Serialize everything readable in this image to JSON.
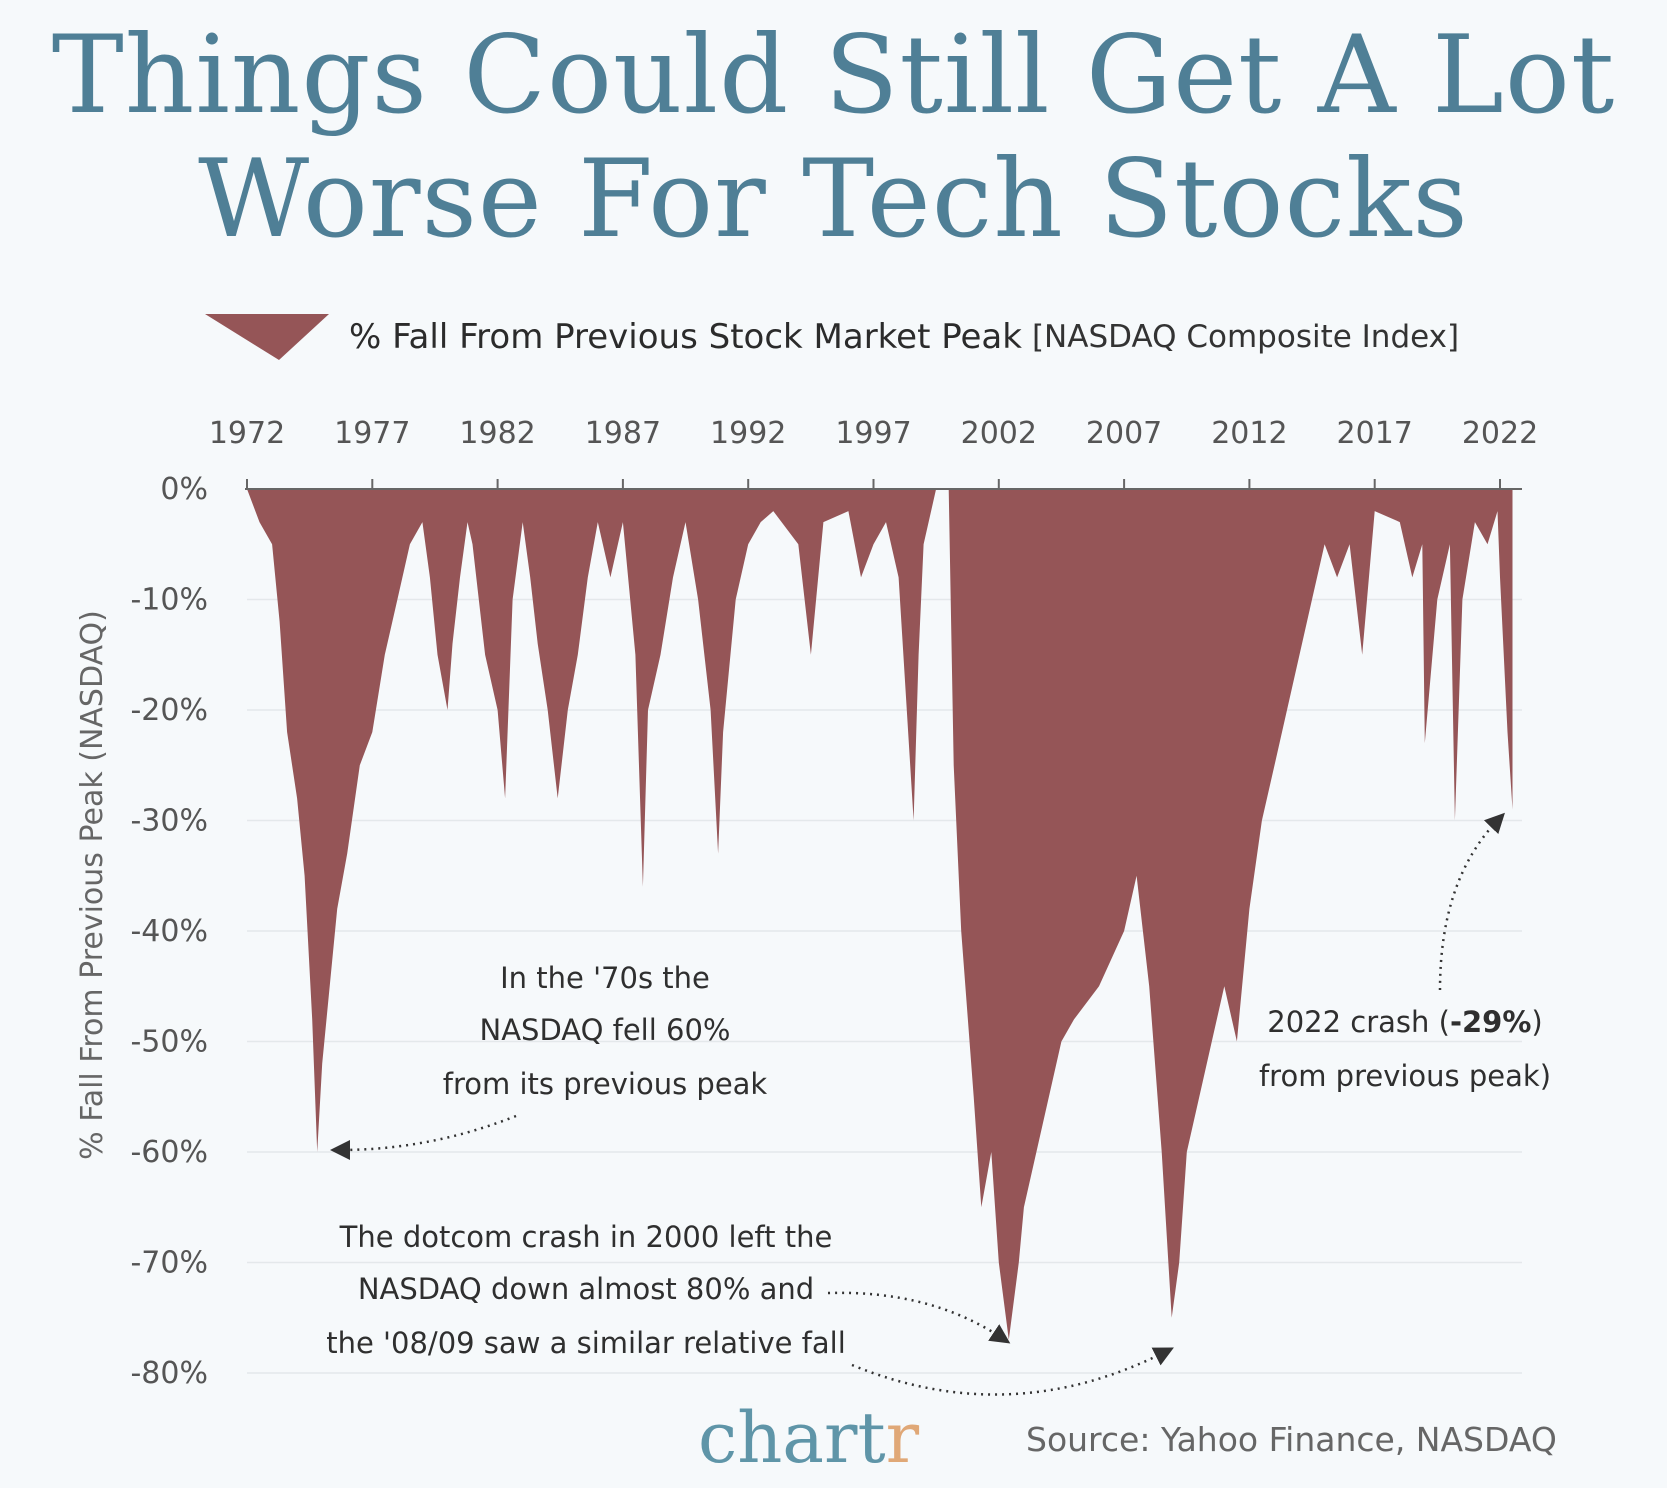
{
  "title_line1": "Things Could Still Get A Lot",
  "title_line2": "Worse For Tech Stocks",
  "legend": {
    "label": "% Fall From Previous Stock Market Peak",
    "sub": "[NASDAQ Composite Index]"
  },
  "colors": {
    "fill": "#955557",
    "title": "#4f7f96",
    "brand_main": "#5f95a8",
    "brand_accent": "#e0a877"
  },
  "chart_data": {
    "type": "area",
    "ylabel": "% Fall From Previous Peak (NASDAQ)",
    "x_ticks": [
      "1972",
      "1977",
      "1982",
      "1987",
      "1992",
      "1997",
      "2002",
      "2007",
      "2012",
      "2017",
      "2022"
    ],
    "y_ticks": [
      "0%",
      "-10%",
      "-20%",
      "-30%",
      "-40%",
      "-50%",
      "-60%",
      "-70%",
      "-80%"
    ],
    "xlim": [
      1972,
      2022.6
    ],
    "ylim": [
      -80,
      0
    ],
    "grid": true,
    "x_axis_position": "top",
    "series": [
      {
        "x": [
          1972.0,
          1972.5,
          1973.0,
          1973.3,
          1973.6,
          1974.0,
          1974.3,
          1974.6,
          1974.8,
          1975.0,
          1975.3,
          1975.6,
          1976.0,
          1976.5,
          1977.0,
          1977.5,
          1978.0,
          1978.5,
          1979.0,
          1979.3,
          1979.6,
          1980.0,
          1980.2,
          1980.5,
          1980.8,
          1981.0,
          1981.5,
          1982.0,
          1982.3,
          1982.6,
          1983.0,
          1983.3,
          1983.6,
          1984.0,
          1984.4,
          1984.8,
          1985.2,
          1985.6,
          1986.0,
          1986.5,
          1987.0,
          1987.5,
          1987.8,
          1988.0,
          1988.5,
          1989.0,
          1989.5,
          1990.0,
          1990.5,
          1990.8,
          1991.0,
          1991.5,
          1992.0,
          1992.5,
          1993.0,
          1994.0,
          1994.5,
          1995.0,
          1996.0,
          1996.5,
          1997.0,
          1997.5,
          1998.0,
          1998.6,
          1998.8,
          1999.0,
          1999.5,
          2000.0,
          2000.2,
          2000.5,
          2001.0,
          2001.3,
          2001.7,
          2002.0,
          2002.4,
          2002.8,
          2003.0,
          2003.5,
          2004.0,
          2004.5,
          2005.0,
          2006.0,
          2007.0,
          2007.5,
          2008.0,
          2008.5,
          2008.9,
          2009.2,
          2009.5,
          2010.0,
          2010.5,
          2011.0,
          2011.5,
          2012.0,
          2012.5,
          2013.0,
          2013.5,
          2014.0,
          2014.5,
          2015.0,
          2015.5,
          2016.0,
          2016.5,
          2017.0,
          2018.0,
          2018.5,
          2018.9,
          2019.0,
          2019.5,
          2020.0,
          2020.2,
          2020.5,
          2021.0,
          2021.5,
          2021.9,
          2022.0,
          2022.3,
          2022.5
        ],
        "values": [
          0,
          -3,
          -5,
          -12,
          -22,
          -28,
          -35,
          -48,
          -60,
          -52,
          -45,
          -38,
          -33,
          -25,
          -22,
          -15,
          -10,
          -5,
          -3,
          -8,
          -15,
          -20,
          -14,
          -8,
          -3,
          -5,
          -15,
          -20,
          -28,
          -10,
          -3,
          -8,
          -14,
          -20,
          -28,
          -20,
          -15,
          -8,
          -3,
          -8,
          -3,
          -15,
          -36,
          -20,
          -15,
          -8,
          -3,
          -10,
          -20,
          -33,
          -22,
          -10,
          -5,
          -3,
          -2,
          -5,
          -15,
          -3,
          -2,
          -8,
          -5,
          -3,
          -8,
          -30,
          -15,
          -5,
          0,
          0,
          -25,
          -40,
          -55,
          -65,
          -60,
          -70,
          -77,
          -70,
          -65,
          -60,
          -55,
          -50,
          -48,
          -45,
          -40,
          -35,
          -45,
          -60,
          -75,
          -70,
          -60,
          -55,
          -50,
          -45,
          -50,
          -38,
          -30,
          -25,
          -20,
          -15,
          -10,
          -5,
          -8,
          -5,
          -15,
          -2,
          -3,
          -8,
          -5,
          -23,
          -10,
          -5,
          -30,
          -10,
          -3,
          -5,
          -2,
          -8,
          -22,
          -29
        ]
      }
    ],
    "annotations": [
      {
        "lines": [
          "In the '70s the",
          "NASDAQ fell 60%",
          "from its previous peak"
        ]
      },
      {
        "lines": [
          "The dotcom crash in 2000 left the",
          "NASDAQ down almost 80% and",
          "the '08/09 saw a similar relative fall"
        ]
      },
      {
        "line1_a": "2022 crash (",
        "line1_b": "-29%",
        "line2": "from previous peak)"
      }
    ]
  },
  "brand": {
    "main": "chart",
    "accent": "r"
  },
  "source": "Source: Yahoo Finance, NASDAQ"
}
